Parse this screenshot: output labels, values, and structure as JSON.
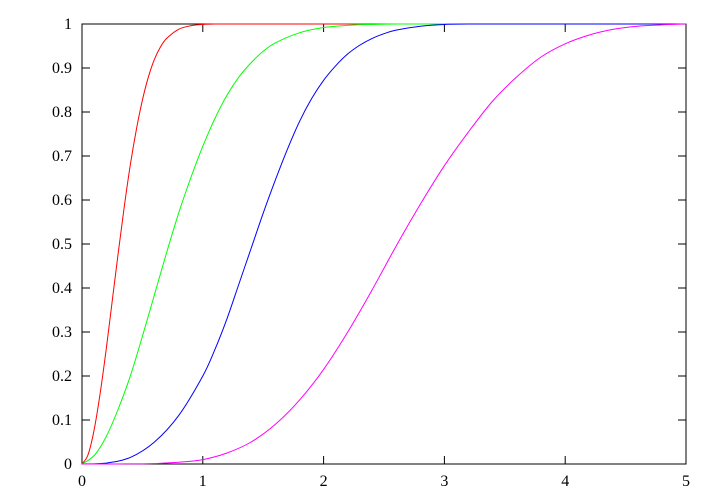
{
  "chart_data": {
    "type": "line",
    "title": "",
    "xlabel": "",
    "ylabel": "",
    "xlim": [
      0,
      5
    ],
    "ylim": [
      0,
      1
    ],
    "grid": false,
    "x_ticks": [
      0,
      1,
      2,
      3,
      4,
      5
    ],
    "y_ticks": [
      0,
      0.1,
      0.2,
      0.3,
      0.4,
      0.5,
      0.6,
      0.7,
      0.8,
      0.9,
      1
    ],
    "x_tick_labels": [
      "0",
      "1",
      "2",
      "3",
      "4",
      "5"
    ],
    "y_tick_labels": [
      "0",
      "0.1",
      "0.2",
      "0.3",
      "0.4",
      "0.5",
      "0.6",
      "0.7",
      "0.8",
      "0.9",
      "1"
    ],
    "series": [
      {
        "color": "#ff0000",
        "x": [
          0,
          0.05,
          0.1,
          0.15,
          0.2,
          0.25,
          0.3,
          0.35,
          0.4,
          0.45,
          0.5,
          0.55,
          0.6,
          0.65,
          0.7,
          0.8,
          0.9,
          1.0,
          1.1,
          1.2,
          1.3,
          1.4,
          1.6,
          2.0,
          3.0,
          4.0,
          5.0
        ],
        "y": [
          0,
          0.021,
          0.077,
          0.16,
          0.26,
          0.37,
          0.48,
          0.585,
          0.68,
          0.76,
          0.827,
          0.88,
          0.92,
          0.948,
          0.967,
          0.988,
          0.996,
          0.999,
          1,
          1,
          1,
          1,
          1,
          1,
          1,
          1,
          1
        ]
      },
      {
        "color": "#00ff00",
        "x": [
          0,
          0.1,
          0.2,
          0.3,
          0.4,
          0.5,
          0.6,
          0.7,
          0.8,
          0.9,
          1.0,
          1.1,
          1.2,
          1.3,
          1.4,
          1.5,
          1.6,
          1.8,
          2.0,
          2.2,
          2.4,
          2.6,
          2.8,
          3.0,
          4.0,
          5.0
        ],
        "y": [
          0,
          0.019,
          0.062,
          0.125,
          0.2,
          0.29,
          0.385,
          0.48,
          0.57,
          0.65,
          0.722,
          0.785,
          0.838,
          0.88,
          0.912,
          0.938,
          0.957,
          0.98,
          0.992,
          0.997,
          0.999,
          1,
          1,
          1,
          1,
          1
        ]
      },
      {
        "color": "#0000ff",
        "x": [
          0,
          0.2,
          0.4,
          0.6,
          0.8,
          1.0,
          1.1,
          1.2,
          1.3,
          1.4,
          1.5,
          1.6,
          1.7,
          1.8,
          1.9,
          2.0,
          2.1,
          2.2,
          2.3,
          2.4,
          2.5,
          2.6,
          2.8,
          3.0,
          3.2,
          4.0,
          5.0
        ],
        "y": [
          0,
          0.002,
          0.015,
          0.05,
          0.11,
          0.2,
          0.26,
          0.33,
          0.41,
          0.49,
          0.57,
          0.645,
          0.715,
          0.778,
          0.83,
          0.872,
          0.905,
          0.932,
          0.952,
          0.967,
          0.978,
          0.986,
          0.995,
          0.999,
          1,
          1,
          1
        ]
      },
      {
        "color": "#ff00ff",
        "x": [
          0,
          0.5,
          0.8,
          1.0,
          1.2,
          1.4,
          1.6,
          1.8,
          2.0,
          2.2,
          2.4,
          2.6,
          2.8,
          3.0,
          3.2,
          3.4,
          3.6,
          3.8,
          4.0,
          4.2,
          4.4,
          4.6,
          4.8,
          5.0
        ],
        "y": [
          0,
          0.0003,
          0.004,
          0.01,
          0.025,
          0.05,
          0.09,
          0.145,
          0.215,
          0.3,
          0.395,
          0.495,
          0.59,
          0.678,
          0.755,
          0.825,
          0.88,
          0.925,
          0.955,
          0.975,
          0.988,
          0.995,
          0.998,
          1
        ]
      }
    ]
  }
}
